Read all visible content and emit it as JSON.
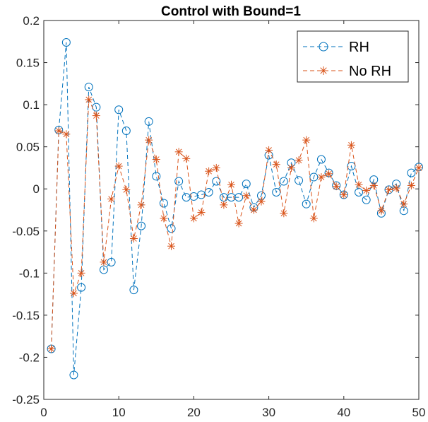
{
  "colors": {
    "rh": "#0072BD",
    "norh": "#D95319",
    "axis": "#262626",
    "background": "#ffffff"
  },
  "chart_data": {
    "type": "line",
    "title": "Control with Bound=1",
    "xlabel": "",
    "ylabel": "",
    "xlim": [
      0,
      50
    ],
    "ylim": [
      -0.25,
      0.2
    ],
    "xticks": [
      0,
      10,
      20,
      30,
      40,
      50
    ],
    "xtick_labels": [
      "0",
      "10",
      "20",
      "30",
      "40",
      "50"
    ],
    "yticks": [
      -0.25,
      -0.2,
      -0.15,
      -0.1,
      -0.05,
      0,
      0.05,
      0.1,
      0.15,
      0.2
    ],
    "ytick_labels": [
      "-0.25",
      "-0.2",
      "-0.15",
      "-0.1",
      "-0.05",
      "0",
      "0.05",
      "0.1",
      "0.15",
      "0.2"
    ],
    "grid": false,
    "legend_position": "top-right",
    "x": [
      1,
      2,
      3,
      4,
      5,
      6,
      7,
      8,
      9,
      10,
      11,
      12,
      13,
      14,
      15,
      16,
      17,
      18,
      19,
      20,
      21,
      22,
      23,
      24,
      25,
      26,
      27,
      28,
      29,
      30,
      31,
      32,
      33,
      34,
      35,
      36,
      37,
      38,
      39,
      40,
      41,
      42,
      43,
      44,
      45,
      46,
      47,
      48,
      49,
      50
    ],
    "series": [
      {
        "name": "RH",
        "marker": "circle",
        "line": "dashed",
        "color": "#0072BD",
        "values": [
          -0.19,
          0.07,
          0.174,
          -0.221,
          -0.117,
          0.121,
          0.097,
          -0.096,
          -0.087,
          0.094,
          0.069,
          -0.12,
          -0.044,
          0.08,
          0.015,
          -0.017,
          -0.047,
          0.009,
          -0.01,
          -0.009,
          -0.007,
          -0.004,
          0.009,
          -0.01,
          -0.01,
          -0.01,
          0.006,
          -0.022,
          -0.008,
          0.04,
          -0.004,
          0.009,
          0.031,
          0.01,
          -0.018,
          0.014,
          0.035,
          0.019,
          0.004,
          -0.007,
          0.027,
          -0.004,
          -0.013,
          0.011,
          -0.029,
          -0.001,
          0.006,
          -0.026,
          0.019,
          0.026
        ]
      },
      {
        "name": "No RH",
        "marker": "star",
        "line": "dashed",
        "color": "#D95319",
        "values": [
          -0.19,
          0.069,
          0.065,
          -0.124,
          -0.1,
          0.106,
          0.087,
          -0.087,
          -0.012,
          0.027,
          -0.001,
          -0.059,
          -0.019,
          0.058,
          0.035,
          -0.035,
          -0.068,
          0.044,
          0.036,
          -0.035,
          -0.028,
          0.021,
          0.025,
          -0.019,
          0.005,
          -0.041,
          -0.008,
          -0.025,
          -0.015,
          0.046,
          0.029,
          -0.029,
          0.025,
          0.034,
          0.058,
          -0.035,
          0.014,
          0.018,
          0.003,
          -0.007,
          0.052,
          0.005,
          -0.002,
          0.004,
          -0.026,
          -0.001,
          0.001,
          -0.018,
          0.004,
          0.025
        ]
      }
    ]
  }
}
